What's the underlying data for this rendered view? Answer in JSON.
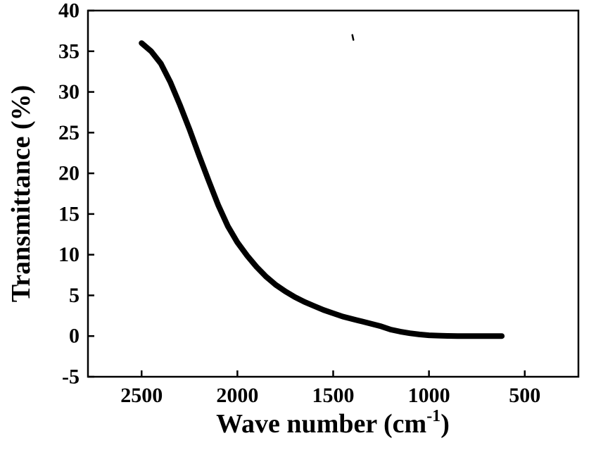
{
  "figure": {
    "background": "#ffffff"
  },
  "chart_data": {
    "type": "line",
    "title": "",
    "xlabel": "Wave number (cm-1)",
    "xlabel_prefix": "Wave number (cm",
    "xlabel_superscript": "-1",
    "xlabel_suffix": ")",
    "ylabel": "Transmittance (%)",
    "x_ticks": [
      2500,
      2000,
      1500,
      1000,
      500
    ],
    "y_ticks": [
      -5,
      0,
      5,
      10,
      15,
      20,
      25,
      30,
      35,
      40
    ],
    "x_range": [
      2780,
      220
    ],
    "y_range": [
      -5,
      40
    ],
    "x_axis_reversed": true,
    "grid": false,
    "legend": "none",
    "line_color": "#000000",
    "line_width": 8,
    "axis_color": "#000000",
    "series": [
      {
        "name": "transmittance-curve",
        "x": [
          2500,
          2450,
          2400,
          2350,
          2300,
          2250,
          2200,
          2150,
          2100,
          2050,
          2000,
          1950,
          1900,
          1850,
          1800,
          1750,
          1700,
          1650,
          1600,
          1550,
          1500,
          1450,
          1400,
          1350,
          1300,
          1250,
          1200,
          1150,
          1100,
          1050,
          1000,
          950,
          900,
          850,
          800,
          750,
          700,
          650,
          620
        ],
        "y": [
          36.0,
          35.0,
          33.5,
          31.2,
          28.4,
          25.4,
          22.2,
          19.1,
          16.1,
          13.5,
          11.5,
          9.9,
          8.5,
          7.3,
          6.3,
          5.5,
          4.8,
          4.2,
          3.7,
          3.2,
          2.8,
          2.4,
          2.1,
          1.8,
          1.5,
          1.2,
          0.8,
          0.55,
          0.35,
          0.2,
          0.1,
          0.05,
          0.02,
          0.0,
          0.0,
          0.0,
          0.0,
          0.0,
          0.0
        ]
      }
    ],
    "annotations": [
      {
        "type": "stray-mark",
        "x": 1400,
        "y": 37
      }
    ]
  }
}
